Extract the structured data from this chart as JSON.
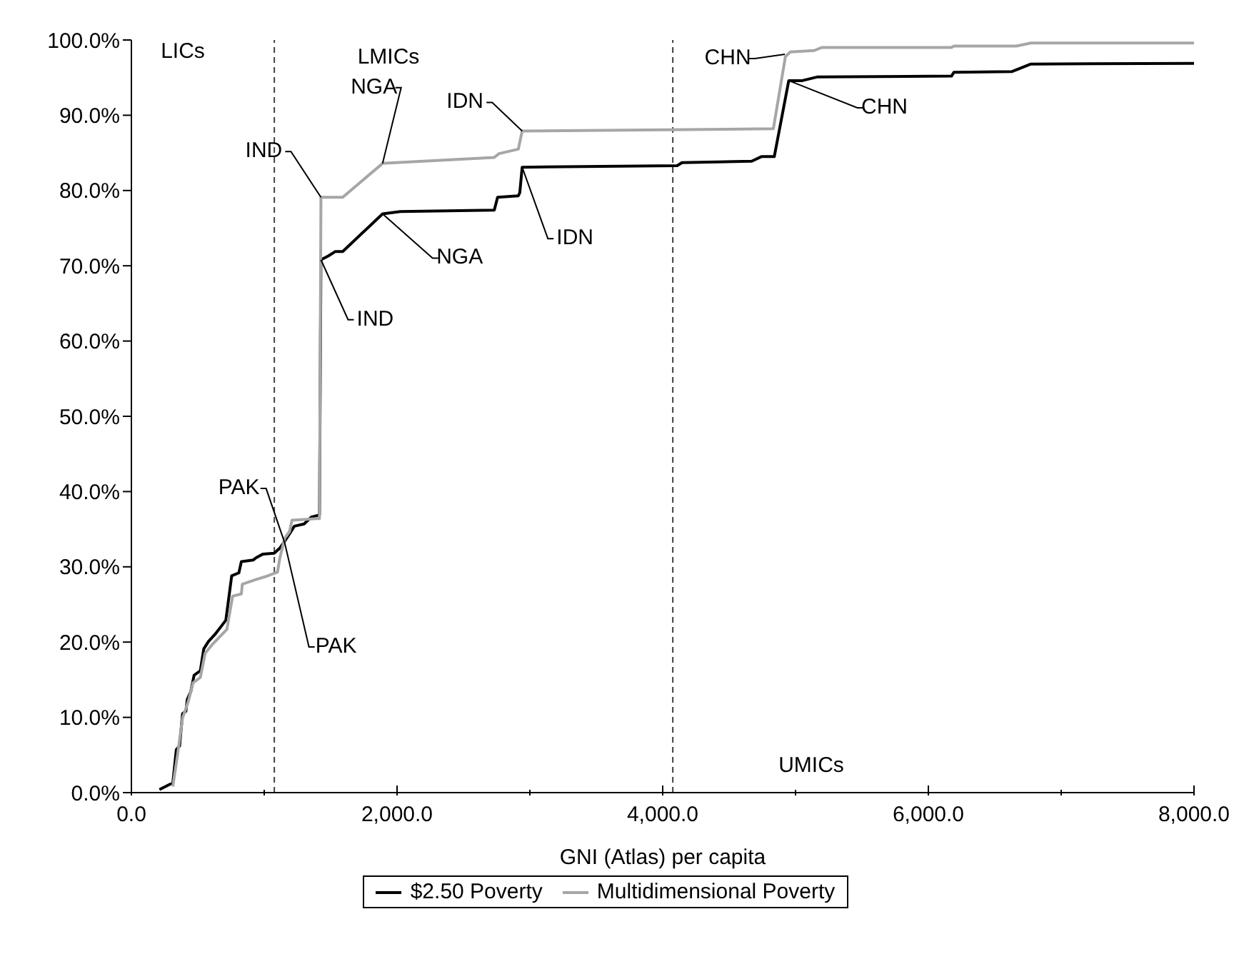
{
  "chart_data": {
    "type": "line",
    "xlabel": "GNI (Atlas) per capita",
    "xlim": [
      0,
      8000
    ],
    "xticks": [
      {
        "value": 0,
        "label": "0.0"
      },
      {
        "value": 1000,
        "label": null
      },
      {
        "value": 2000,
        "label": "2,000.0"
      },
      {
        "value": 3000,
        "label": null
      },
      {
        "value": 4000,
        "label": "4,000.0"
      },
      {
        "value": 5000,
        "label": null
      },
      {
        "value": 6000,
        "label": "6,000.0"
      },
      {
        "value": 7000,
        "label": null
      },
      {
        "value": 8000,
        "label": "8,000.0"
      }
    ],
    "ylim": [
      0,
      100
    ],
    "yticks": [
      {
        "value": 0,
        "label": "0.0%"
      },
      {
        "value": 10,
        "label": "10.0%"
      },
      {
        "value": 20,
        "label": "20.0%"
      },
      {
        "value": 30,
        "label": "30.0%"
      },
      {
        "value": 40,
        "label": "40.0%"
      },
      {
        "value": 50,
        "label": "50.0%"
      },
      {
        "value": 60,
        "label": "60.0%"
      },
      {
        "value": 70,
        "label": "70.0%"
      },
      {
        "value": 80,
        "label": "80.0%"
      },
      {
        "value": 90,
        "label": "90.0%"
      },
      {
        "value": 100,
        "label": "100.0%"
      }
    ],
    "legend": "bottom",
    "marker": "none",
    "line_style": "solid",
    "series": [
      {
        "name": "$2.50 Poverty",
        "color": "#000000",
        "x": [
          211,
          312,
          338,
          363,
          385,
          410,
          421,
          447,
          472,
          519,
          545,
          581,
          628,
          711,
          755,
          809,
          828,
          918,
          937,
          991,
          1075,
          1118,
          1154,
          1191,
          1227,
          1300,
          1354,
          1416,
          1427,
          1482,
          1536,
          1591,
          1891,
          2025,
          2732,
          2757,
          2913,
          2924,
          2942,
          4109,
          4145,
          4670,
          4743,
          4840,
          4949,
          5051,
          5167,
          6174,
          6192,
          6627,
          6772,
          8000
        ],
        "values": [
          0.4,
          1.3,
          5.7,
          6.2,
          10.5,
          10.8,
          12.4,
          13.4,
          15.6,
          16.2,
          19.1,
          20.1,
          21.0,
          22.9,
          28.8,
          29.2,
          30.7,
          30.9,
          31.2,
          31.7,
          31.8,
          32.5,
          33.4,
          34.4,
          35.4,
          35.7,
          36.6,
          36.9,
          70.8,
          71.3,
          71.9,
          71.9,
          76.9,
          77.2,
          77.4,
          79.1,
          79.3,
          79.7,
          83.1,
          83.3,
          83.7,
          83.9,
          84.5,
          84.5,
          94.6,
          94.6,
          95.1,
          95.2,
          95.7,
          95.8,
          96.8,
          96.9
        ]
      },
      {
        "name": "Multidimensional Poverty",
        "color": "#a6a6a6",
        "x": [
          312,
          348,
          385,
          428,
          465,
          519,
          555,
          610,
          719,
          762,
          828,
          835,
          937,
          1009,
          1100,
          1118,
          1154,
          1191,
          1209,
          1300,
          1390,
          1416,
          1427,
          1591,
          1891,
          2732,
          2768,
          2913,
          2942,
          4833,
          4924,
          4960,
          5141,
          5196,
          6174,
          6192,
          6663,
          6772,
          8000
        ],
        "values": [
          0.8,
          5.1,
          9.9,
          12.1,
          14.6,
          15.3,
          18.5,
          19.7,
          21.7,
          26.1,
          26.4,
          27.7,
          28.3,
          28.7,
          29.3,
          31.2,
          33.8,
          34.7,
          36.2,
          36.3,
          36.4,
          36.4,
          79.1,
          79.1,
          83.6,
          84.4,
          84.9,
          85.5,
          87.9,
          88.2,
          97.8,
          98.4,
          98.6,
          99.0,
          99.0,
          99.2,
          99.2,
          99.6,
          99.6
        ]
      }
    ],
    "ref_lines": [
      {
        "axis": "x",
        "value": 1076,
        "color": "#404040",
        "line_style": "dashed"
      },
      {
        "axis": "x",
        "value": 4076,
        "color": "#404040",
        "line_style": "dashed"
      }
    ],
    "annotations": [
      "LICs",
      "LMICs",
      "UMICs",
      {
        "text": "IND",
        "x": 1427,
        "y": 79.1
      },
      {
        "text": "IND",
        "x": 1427,
        "y": 70.8
      },
      {
        "text": "NGA",
        "x": 1891,
        "y": 83.6
      },
      {
        "text": "NGA",
        "x": 1891,
        "y": 76.9
      },
      {
        "text": "IDN",
        "x": 2942,
        "y": 87.9
      },
      {
        "text": "IDN",
        "x": 2942,
        "y": 83.1
      },
      {
        "text": "CHN",
        "x": 4920,
        "y": 98.1
      },
      {
        "text": "CHN",
        "x": 4949,
        "y": 94.6
      },
      {
        "text": "PAK",
        "x": 1154,
        "y": 33.2
      },
      {
        "text": "PAK",
        "x": 1154,
        "y": 33.2
      }
    ]
  }
}
